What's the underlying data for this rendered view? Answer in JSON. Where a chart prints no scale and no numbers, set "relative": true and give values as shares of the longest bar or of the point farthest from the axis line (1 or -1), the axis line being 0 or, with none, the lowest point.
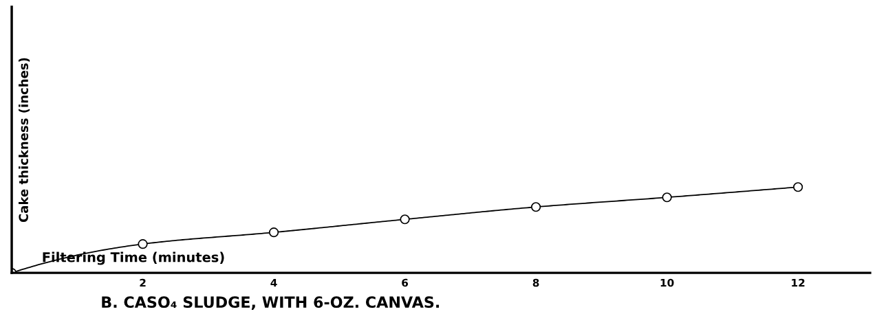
{
  "chart_data": {
    "type": "line",
    "title": "B. CASO₄ SLUDGE, WITH 6-OZ. CANVAS.",
    "xlabel": "Filtering Time (minutes)",
    "ylabel": "Cake thickness (inches)",
    "x": [
      0,
      2,
      4,
      6,
      8,
      10,
      12
    ],
    "series": [
      {
        "color": "#000000",
        "values": [
          0,
          0.336,
          0.472,
          0.624,
          0.768,
          0.88,
          1.0
        ]
      }
    ],
    "relative": true,
    "xlim": [
      0,
      13.1
    ],
    "xticks": [
      2,
      4,
      6,
      8,
      10,
      12
    ],
    "tick_labels": "x",
    "grid": false,
    "legend": false,
    "marker": "circle",
    "line_style": "solid"
  }
}
